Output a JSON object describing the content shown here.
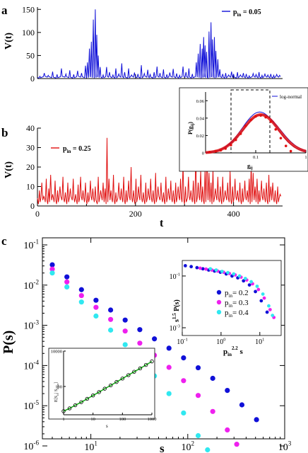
{
  "colors": {
    "blue": "#1010d8",
    "red": "#e01010",
    "magenta": "#ee20ee",
    "cyan": "#30e8f0",
    "green": "#10b010",
    "blue_pts": "#1818e8"
  },
  "chart_data": [
    {
      "panel": "a",
      "type": "line",
      "ylabel": "V(t)",
      "legend": {
        "prefix": "p",
        "sub": "in",
        "suffix": " = 0.05"
      },
      "yticks": [
        0,
        50,
        100,
        150
      ],
      "ylim": [
        0,
        155
      ],
      "xlim": [
        0,
        500
      ],
      "peaks": [
        [
          5,
          5
        ],
        [
          14,
          12
        ],
        [
          22,
          7
        ],
        [
          31,
          15
        ],
        [
          40,
          9
        ],
        [
          49,
          22
        ],
        [
          58,
          10
        ],
        [
          66,
          18
        ],
        [
          74,
          9
        ],
        [
          82,
          17
        ],
        [
          90,
          12
        ],
        [
          98,
          28
        ],
        [
          102,
          35
        ],
        [
          106,
          65
        ],
        [
          110,
          80
        ],
        [
          114,
          128
        ],
        [
          118,
          150
        ],
        [
          121,
          95
        ],
        [
          124,
          50
        ],
        [
          128,
          25
        ],
        [
          134,
          8
        ],
        [
          141,
          25
        ],
        [
          147,
          14
        ],
        [
          154,
          8
        ],
        [
          160,
          22
        ],
        [
          166,
          10
        ],
        [
          172,
          33
        ],
        [
          178,
          14
        ],
        [
          186,
          22
        ],
        [
          192,
          8
        ],
        [
          198,
          13
        ],
        [
          205,
          10
        ],
        [
          212,
          29
        ],
        [
          218,
          11
        ],
        [
          225,
          19
        ],
        [
          230,
          9
        ],
        [
          238,
          14
        ],
        [
          244,
          26
        ],
        [
          250,
          12
        ],
        [
          257,
          20
        ],
        [
          264,
          9
        ],
        [
          270,
          13
        ],
        [
          277,
          21
        ],
        [
          284,
          11
        ],
        [
          290,
          7
        ],
        [
          297,
          26
        ],
        [
          303,
          14
        ],
        [
          309,
          22
        ],
        [
          316,
          10
        ],
        [
          324,
          35
        ],
        [
          328,
          54
        ],
        [
          332,
          75
        ],
        [
          336,
          65
        ],
        [
          339,
          90
        ],
        [
          342,
          72
        ],
        [
          345,
          58
        ],
        [
          350,
          102
        ],
        [
          354,
          122
        ],
        [
          357,
          85
        ],
        [
          361,
          90
        ],
        [
          364,
          60
        ],
        [
          368,
          42
        ],
        [
          372,
          20
        ],
        [
          378,
          10
        ],
        [
          384,
          12
        ],
        [
          390,
          8
        ],
        [
          396,
          15
        ],
        [
          400,
          10
        ],
        [
          408,
          14
        ],
        [
          414,
          8
        ],
        [
          420,
          12
        ],
        [
          426,
          10
        ],
        [
          432,
          6
        ],
        [
          440,
          11
        ],
        [
          446,
          9
        ],
        [
          452,
          14
        ],
        [
          458,
          7
        ],
        [
          464,
          10
        ],
        [
          470,
          8
        ],
        [
          476,
          10
        ],
        [
          482,
          7
        ],
        [
          488,
          9
        ],
        [
          494,
          7
        ]
      ]
    },
    {
      "panel": "b",
      "type": "line",
      "ylabel": "V(t)",
      "xlabel": "t",
      "legend": {
        "prefix": "p",
        "sub": "in",
        "suffix": " = 0.25"
      },
      "yticks": [
        0,
        10,
        20,
        30,
        40
      ],
      "xticks": [
        0,
        200,
        400
      ],
      "ylim": [
        0,
        40
      ],
      "xlim": [
        0,
        500
      ],
      "peaks": [
        [
          4,
          8
        ],
        [
          9,
          12
        ],
        [
          13,
          5
        ],
        [
          18,
          14
        ],
        [
          23,
          9
        ],
        [
          27,
          16
        ],
        [
          31,
          6
        ],
        [
          36,
          13
        ],
        [
          41,
          8
        ],
        [
          46,
          10
        ],
        [
          52,
          15
        ],
        [
          57,
          7
        ],
        [
          62,
          12
        ],
        [
          67,
          9
        ],
        [
          73,
          14
        ],
        [
          78,
          6
        ],
        [
          83,
          11
        ],
        [
          88,
          15
        ],
        [
          93,
          8
        ],
        [
          98,
          12
        ],
        [
          103,
          7
        ],
        [
          108,
          13
        ],
        [
          113,
          9
        ],
        [
          118,
          10
        ],
        [
          124,
          15
        ],
        [
          129,
          8
        ],
        [
          134,
          12
        ],
        [
          138,
          9
        ],
        [
          142,
          35
        ],
        [
          146,
          14
        ],
        [
          150,
          8
        ],
        [
          155,
          16
        ],
        [
          160,
          7
        ],
        [
          166,
          12
        ],
        [
          171,
          9
        ],
        [
          176,
          15
        ],
        [
          181,
          8
        ],
        [
          186,
          13
        ],
        [
          191,
          20
        ],
        [
          196,
          8
        ],
        [
          201,
          14
        ],
        [
          206,
          10
        ],
        [
          211,
          16
        ],
        [
          216,
          7
        ],
        [
          221,
          12
        ],
        [
          226,
          9
        ],
        [
          231,
          14
        ],
        [
          236,
          8
        ],
        [
          241,
          17
        ],
        [
          246,
          10
        ],
        [
          252,
          12
        ],
        [
          257,
          7
        ],
        [
          262,
          15
        ],
        [
          267,
          9
        ],
        [
          272,
          13
        ],
        [
          277,
          8
        ],
        [
          282,
          12
        ],
        [
          287,
          10
        ],
        [
          292,
          14
        ],
        [
          297,
          22
        ],
        [
          302,
          10
        ],
        [
          308,
          15
        ],
        [
          313,
          8
        ],
        [
          318,
          13
        ],
        [
          323,
          29
        ],
        [
          328,
          12
        ],
        [
          333,
          18
        ],
        [
          337,
          10
        ],
        [
          342,
          19
        ],
        [
          346,
          30
        ],
        [
          350,
          17
        ],
        [
          354,
          12
        ],
        [
          358,
          19
        ],
        [
          363,
          9
        ],
        [
          368,
          15
        ],
        [
          373,
          10
        ],
        [
          378,
          15
        ],
        [
          383,
          8
        ],
        [
          388,
          12
        ],
        [
          393,
          18
        ],
        [
          398,
          10
        ],
        [
          403,
          14
        ],
        [
          408,
          8
        ],
        [
          413,
          12
        ],
        [
          418,
          9
        ],
        [
          423,
          13
        ],
        [
          428,
          8
        ],
        [
          432,
          14
        ],
        [
          436,
          22
        ],
        [
          440,
          17
        ],
        [
          444,
          10
        ],
        [
          448,
          14
        ],
        [
          452,
          8
        ],
        [
          457,
          13
        ],
        [
          462,
          9
        ],
        [
          467,
          12
        ],
        [
          472,
          16
        ],
        [
          476,
          10
        ],
        [
          480,
          12
        ],
        [
          485,
          8
        ],
        [
          490,
          10
        ],
        [
          495,
          6
        ]
      ]
    },
    {
      "panel": "inset-b",
      "type": "scatter",
      "ylabel": {
        "main": "P(g",
        "sub": "ij",
        "close": ")"
      },
      "xlabel": {
        "main": "g",
        "sub": "ij"
      },
      "legend": "log-normal",
      "yticks": [
        0,
        0.02,
        0.04,
        0.06
      ],
      "xticks": [
        0.1,
        1
      ],
      "xlim_log": [
        0.01,
        1
      ],
      "ylim": [
        0,
        0.07
      ],
      "x": [
        0.012,
        0.016,
        0.02,
        0.025,
        0.032,
        0.04,
        0.05,
        0.063,
        0.08,
        0.1,
        0.126,
        0.158,
        0.2,
        0.25,
        0.316,
        0.4,
        0.5
      ],
      "y": [
        0.001,
        0.002,
        0.003,
        0.005,
        0.009,
        0.015,
        0.022,
        0.031,
        0.038,
        0.042,
        0.043,
        0.041,
        0.036,
        0.027,
        0.017,
        0.008,
        0.002
      ]
    },
    {
      "panel": "c",
      "type": "scatter",
      "xlabel": "s",
      "ylabel": "P(s)",
      "xlim_log": [
        1,
        3
      ],
      "ylim_log": [
        -6,
        -1
      ],
      "xtick_labels": [
        {
          "base": "10",
          "exp": "1"
        },
        {
          "base": "10",
          "exp": "2"
        },
        {
          "base": "10",
          "exp": "3"
        }
      ],
      "ytick_labels": [
        {
          "base": "10",
          "exp": "-6"
        },
        {
          "base": "10",
          "exp": "-5"
        },
        {
          "base": "10",
          "exp": "-4"
        },
        {
          "base": "10",
          "exp": "-3"
        },
        {
          "base": "10",
          "exp": "-2"
        },
        {
          "base": "10",
          "exp": "-1"
        }
      ],
      "series": [
        {
          "color": "blue",
          "x": [
            4,
            5.66,
            8,
            11.3,
            16,
            22.6,
            32,
            45.3,
            64,
            90.5,
            128,
            181,
            256,
            362,
            512
          ],
          "y": [
            0.032,
            0.016,
            0.0077,
            0.0042,
            0.0024,
            0.00135,
            0.00078,
            0.00046,
            0.00027,
            0.000155,
            8.8e-05,
            4.8e-05,
            2.4e-05,
            1.05e-05,
            4.5e-06
          ]
        },
        {
          "color": "magenta",
          "x": [
            4,
            5.66,
            8,
            11.3,
            16,
            22.6,
            32,
            45.3,
            64,
            90.5,
            128,
            181,
            256,
            320
          ],
          "y": [
            0.025,
            0.012,
            0.0055,
            0.0028,
            0.0014,
            0.00072,
            0.00036,
            0.00018,
            9e-05,
            4.2e-05,
            1.8e-05,
            7.2e-06,
            2.5e-06,
            1.1e-06
          ]
        },
        {
          "color": "cyan",
          "x": [
            4,
            5.66,
            8,
            11.3,
            16,
            22.6,
            32,
            45.3,
            64,
            90.5,
            128,
            160
          ],
          "y": [
            0.02,
            0.009,
            0.0038,
            0.0017,
            0.00076,
            0.00033,
            0.00014,
            5.5e-05,
            2e-05,
            6.6e-06,
            1.8e-06,
            8e-07
          ]
        }
      ]
    },
    {
      "panel": "inset-c-right",
      "type": "scatter",
      "xlabel": {
        "p": "p",
        "sub": "in",
        "sup": "2.2",
        "s": " s"
      },
      "ylabel": {
        "s": "s",
        "sup": "1.5",
        "p": " P(s)"
      },
      "xtick_labels": [
        {
          "base": "10",
          "exp": "-1"
        },
        {
          "base": "10",
          "exp": "0"
        },
        {
          "base": "10",
          "exp": "1"
        }
      ],
      "ytick_labels": [
        {
          "base": "10",
          "exp": "-1"
        },
        {
          "base": "10",
          "exp": "-3"
        }
      ],
      "legend": [
        {
          "color": "blue",
          "label": "= 0.2"
        },
        {
          "color": "magenta",
          "label": "= 0.3"
        },
        {
          "color": "cyan",
          "label": "= 0.4"
        }
      ],
      "series": [
        {
          "color": "blue",
          "x": [
            0.12,
            0.17,
            0.24,
            0.34,
            0.48,
            0.68,
            0.96,
            1.36,
            1.92,
            2.7,
            3.8,
            5.4,
            7.7,
            10.9,
            15.4
          ],
          "y": [
            0.25,
            0.23,
            0.21,
            0.19,
            0.17,
            0.155,
            0.14,
            0.12,
            0.1,
            0.085,
            0.065,
            0.045,
            0.025,
            0.011,
            0.004
          ]
        },
        {
          "color": "magenta",
          "x": [
            0.29,
            0.41,
            0.58,
            0.82,
            1.16,
            1.64,
            2.32,
            3.28,
            4.6,
            6.5,
            9.2,
            13,
            18.4,
            23
          ],
          "y": [
            0.2,
            0.185,
            0.17,
            0.155,
            0.14,
            0.125,
            0.11,
            0.09,
            0.07,
            0.05,
            0.03,
            0.014,
            0.005,
            0.0025
          ]
        },
        {
          "color": "cyan",
          "x": [
            0.53,
            0.75,
            1.06,
            1.5,
            2.12,
            3.0,
            4.24,
            6,
            8.5,
            12,
            17,
            21.2
          ],
          "y": [
            0.19,
            0.17,
            0.15,
            0.135,
            0.12,
            0.1,
            0.08,
            0.06,
            0.04,
            0.02,
            0.007,
            0.003
          ]
        }
      ]
    },
    {
      "panel": "inset-c-left",
      "type": "scatter",
      "ylabel": "E[S",
      "ylabel_sub": "cl",
      "ylabel_rest": "| S",
      "ylabel_sub2": "max",
      "ylabel_close": "]",
      "xlabel": "s",
      "xtick_labels": [
        "1",
        "10",
        "100",
        "1000"
      ],
      "ytick_labels": [
        "100",
        "10000"
      ],
      "x": [
        1,
        1.6,
        2.5,
        4,
        6.3,
        10,
        16,
        25,
        40,
        63,
        100,
        160,
        250,
        400,
        630,
        1000
      ],
      "y": [
        4,
        5.8,
        8.7,
        13,
        20,
        31,
        48,
        75,
        115,
        180,
        280,
        440,
        680,
        1050,
        1650,
        2600
      ]
    }
  ],
  "panel_labels": {
    "a": "a",
    "b": "b",
    "c": "c"
  }
}
